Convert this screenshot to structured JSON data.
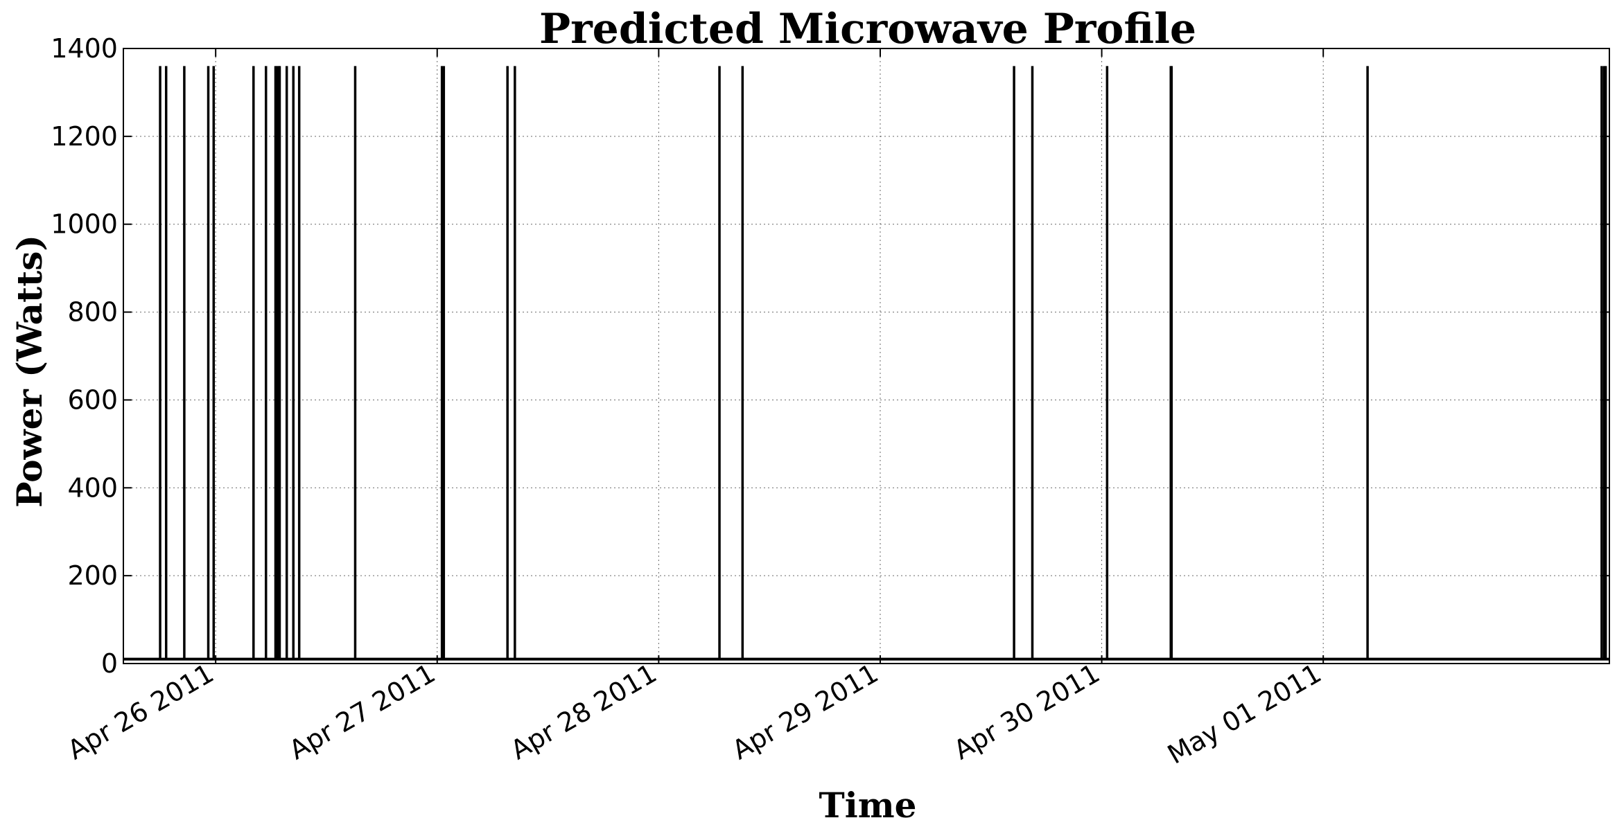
{
  "chart_data": {
    "type": "line",
    "title": "Predicted Microwave Profile",
    "xlabel": "Time",
    "ylabel": "Power (Watts)",
    "ylim": [
      0,
      1400
    ],
    "yticks": [
      0,
      200,
      400,
      600,
      800,
      1000,
      1200,
      1400
    ],
    "xlim": [
      "2011-04-25T14:00",
      "2011-05-02T07:00"
    ],
    "xticks": [
      {
        "t": "2011-04-26T00:00",
        "label": "Apr 26 2011"
      },
      {
        "t": "2011-04-27T00:00",
        "label": "Apr 27 2011"
      },
      {
        "t": "2011-04-28T00:00",
        "label": "Apr 28 2011"
      },
      {
        "t": "2011-04-29T00:00",
        "label": "Apr 29 2011"
      },
      {
        "t": "2011-04-30T00:00",
        "label": "Apr 30 2011"
      },
      {
        "t": "2011-05-01T00:00",
        "label": "May 01 2011"
      }
    ],
    "grid": true,
    "baseline_watts": 10,
    "series": [
      {
        "color": "#000000",
        "spike_peak_watts": 1360,
        "spike_times": [
          "2011-04-25T17:59",
          "2011-04-25T18:38",
          "2011-04-25T20:36",
          "2011-04-25T23:12",
          "2011-04-25T23:47",
          "2011-04-26T04:06",
          "2011-04-26T05:27",
          "2011-04-26T06:29",
          "2011-04-26T06:39",
          "2011-04-26T06:50",
          "2011-04-26T06:56",
          "2011-04-26T07:42",
          "2011-04-26T08:25",
          "2011-04-26T09:03",
          "2011-04-26T15:07",
          "2011-04-27T00:31",
          "2011-04-27T00:43",
          "2011-04-27T07:37",
          "2011-04-27T08:25",
          "2011-04-28T06:35",
          "2011-04-28T09:05",
          "2011-04-29T14:30",
          "2011-04-29T16:29",
          "2011-04-30T00:35",
          "2011-04-30T07:29",
          "2011-04-30T07:34",
          "2011-05-01T04:48",
          "2011-05-02T06:10",
          "2011-05-02T06:26",
          "2011-05-02T06:36"
        ]
      }
    ]
  }
}
